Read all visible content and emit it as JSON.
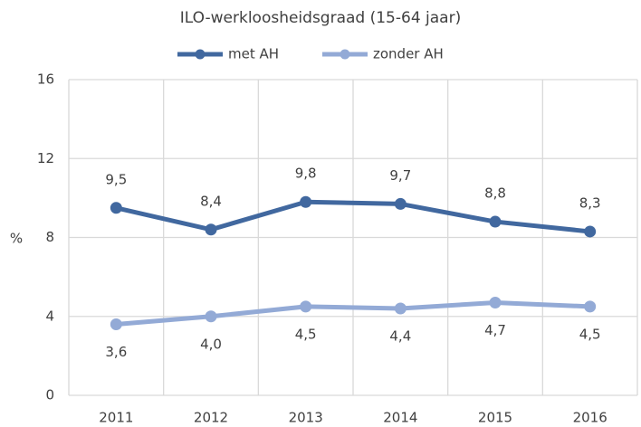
{
  "chart_data": {
    "type": "line",
    "title": "ILO-werkloosheidsgraad (15-64 jaar)",
    "y_label": "%",
    "categories": [
      "2011",
      "2012",
      "2013",
      "2014",
      "2015",
      "2016"
    ],
    "series": [
      {
        "name": "met AH",
        "color": "#41689f",
        "values": [
          9.5,
          8.4,
          9.8,
          9.7,
          8.8,
          8.3
        ],
        "value_labels": [
          "9,5",
          "8,4",
          "9,8",
          "9,7",
          "8,8",
          "8,3"
        ]
      },
      {
        "name": "zonder AH",
        "color": "#93aad6",
        "values": [
          3.6,
          4.0,
          4.5,
          4.4,
          4.7,
          4.5
        ],
        "value_labels": [
          "3,6",
          "4,0",
          "4,5",
          "4,4",
          "4,7",
          "4,5"
        ]
      }
    ],
    "ylim": [
      0,
      16
    ],
    "yticks": [
      0,
      4,
      8,
      12,
      16
    ],
    "grid": true,
    "legend": "top"
  }
}
